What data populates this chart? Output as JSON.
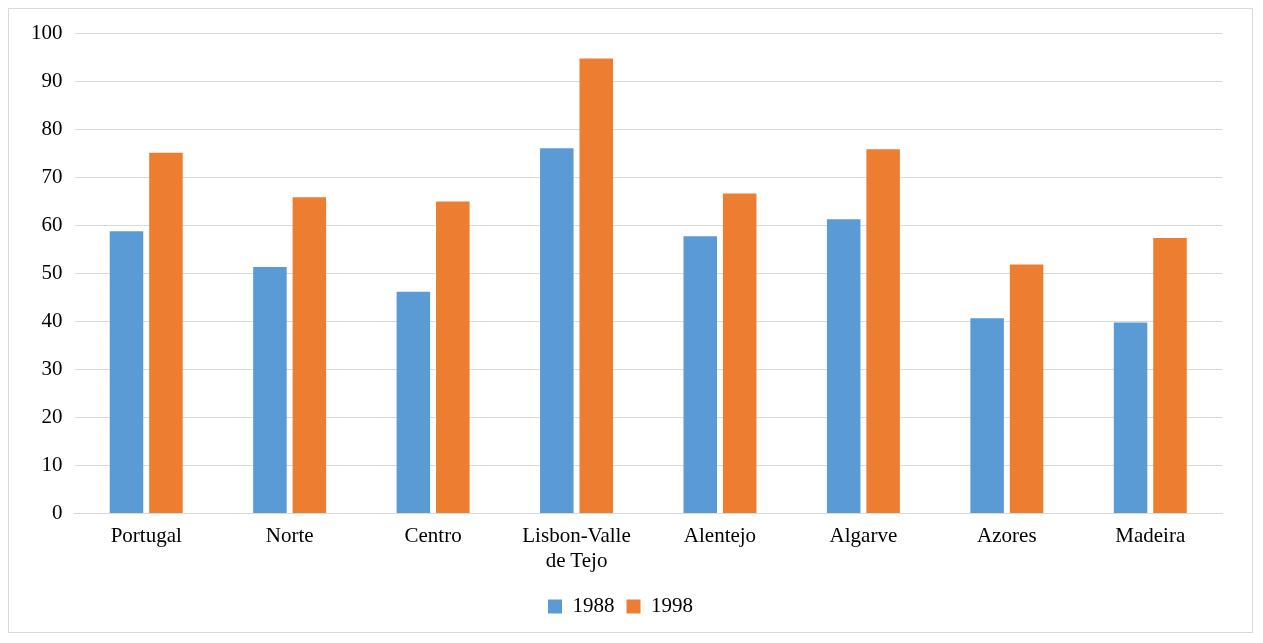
{
  "chart_data": {
    "type": "bar",
    "categories": [
      "Portugal",
      "Norte",
      "Centro",
      "Lisbon-Valle de Tejo",
      "Alentejo",
      "Algarve",
      "Azores",
      "Madeira"
    ],
    "series": [
      {
        "name": "1988",
        "color": "#5b9bd5",
        "values": [
          58.8,
          51.4,
          46.2,
          76.1,
          57.8,
          61.3,
          40.7,
          39.8
        ]
      },
      {
        "name": "1998",
        "color": "#ed7d31",
        "values": [
          75.2,
          65.9,
          65,
          94.8,
          66.7,
          75.9,
          51.9,
          57.4
        ]
      }
    ],
    "ylim": [
      0,
      100
    ],
    "yticks": [
      0,
      10,
      20,
      30,
      40,
      50,
      60,
      70,
      80,
      90,
      100
    ],
    "grid": "y",
    "legend": "bottom"
  }
}
